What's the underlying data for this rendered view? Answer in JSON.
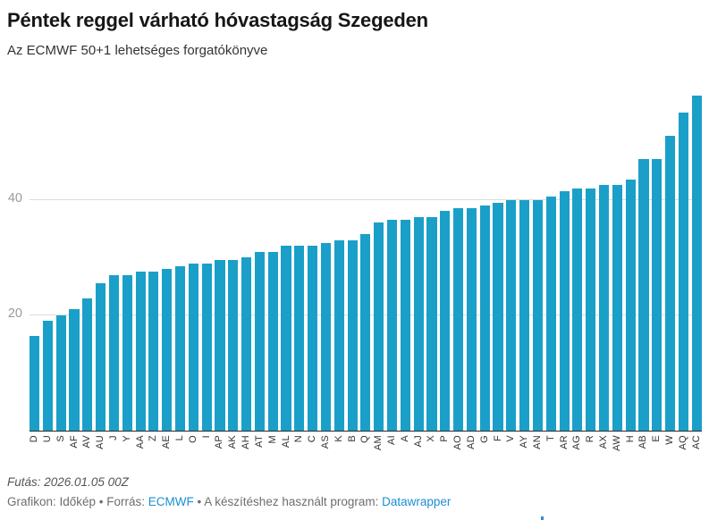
{
  "header": {
    "title": "Péntek reggel várható hóvastagság Szegeden",
    "subtitle": "Az ECMWF 50+1 lehetséges forgatókönyve"
  },
  "chart_data": {
    "type": "bar",
    "title": "Péntek reggel várható hóvastagság Szegeden",
    "subtitle": "Az ECMWF 50+1 lehetséges forgatókönyve",
    "categories": [
      "D",
      "U",
      "S",
      "AF",
      "AV",
      "AU",
      "J",
      "Y",
      "AA",
      "Z",
      "AE",
      "L",
      "O",
      "I",
      "AP",
      "AK",
      "AH",
      "AT",
      "M",
      "AL",
      "N",
      "C",
      "AS",
      "K",
      "B",
      "Q",
      "AM",
      "AI",
      "A",
      "AJ",
      "X",
      "P",
      "AO",
      "AD",
      "G",
      "F",
      "V",
      "AY",
      "AN",
      "T",
      "AR",
      "AG",
      "R",
      "AX",
      "AW",
      "H",
      "AB",
      "E",
      "W",
      "AQ",
      "AC"
    ],
    "values": [
      16.5,
      19,
      20,
      21,
      23,
      25.5,
      27,
      27,
      27.5,
      27.5,
      28,
      28.5,
      29,
      29,
      29.5,
      29.5,
      30,
      31,
      31,
      32,
      32,
      32,
      32.5,
      33,
      33,
      34,
      36,
      36.5,
      36.5,
      37,
      37,
      38,
      38.5,
      38.5,
      39,
      39.5,
      40,
      40,
      40,
      40.5,
      41.5,
      42,
      42,
      42.5,
      42.5,
      43.5,
      47,
      47,
      51,
      55,
      58
    ],
    "xlabel": "",
    "ylabel": "",
    "ylim": [
      0,
      60
    ],
    "yticks": [
      20,
      40
    ],
    "grid": "horizontal",
    "legend": "none",
    "bar_color": "#1aa0c8",
    "sorted": "ascending"
  },
  "colors": {
    "bar": "#1aa0c8",
    "link": "#1d8ed2",
    "gridline": "#dcdcdc",
    "axis": "#2b2b2b"
  },
  "footer": {
    "run_line": "Futás: 2026.01.05 00Z",
    "byline_prefix": "Grafikon: Időkép • Forrás: ",
    "source_link": "ECMWF",
    "byline_middle": " • A készítéshez használt program: ",
    "tool_link": "Datawrapper"
  }
}
